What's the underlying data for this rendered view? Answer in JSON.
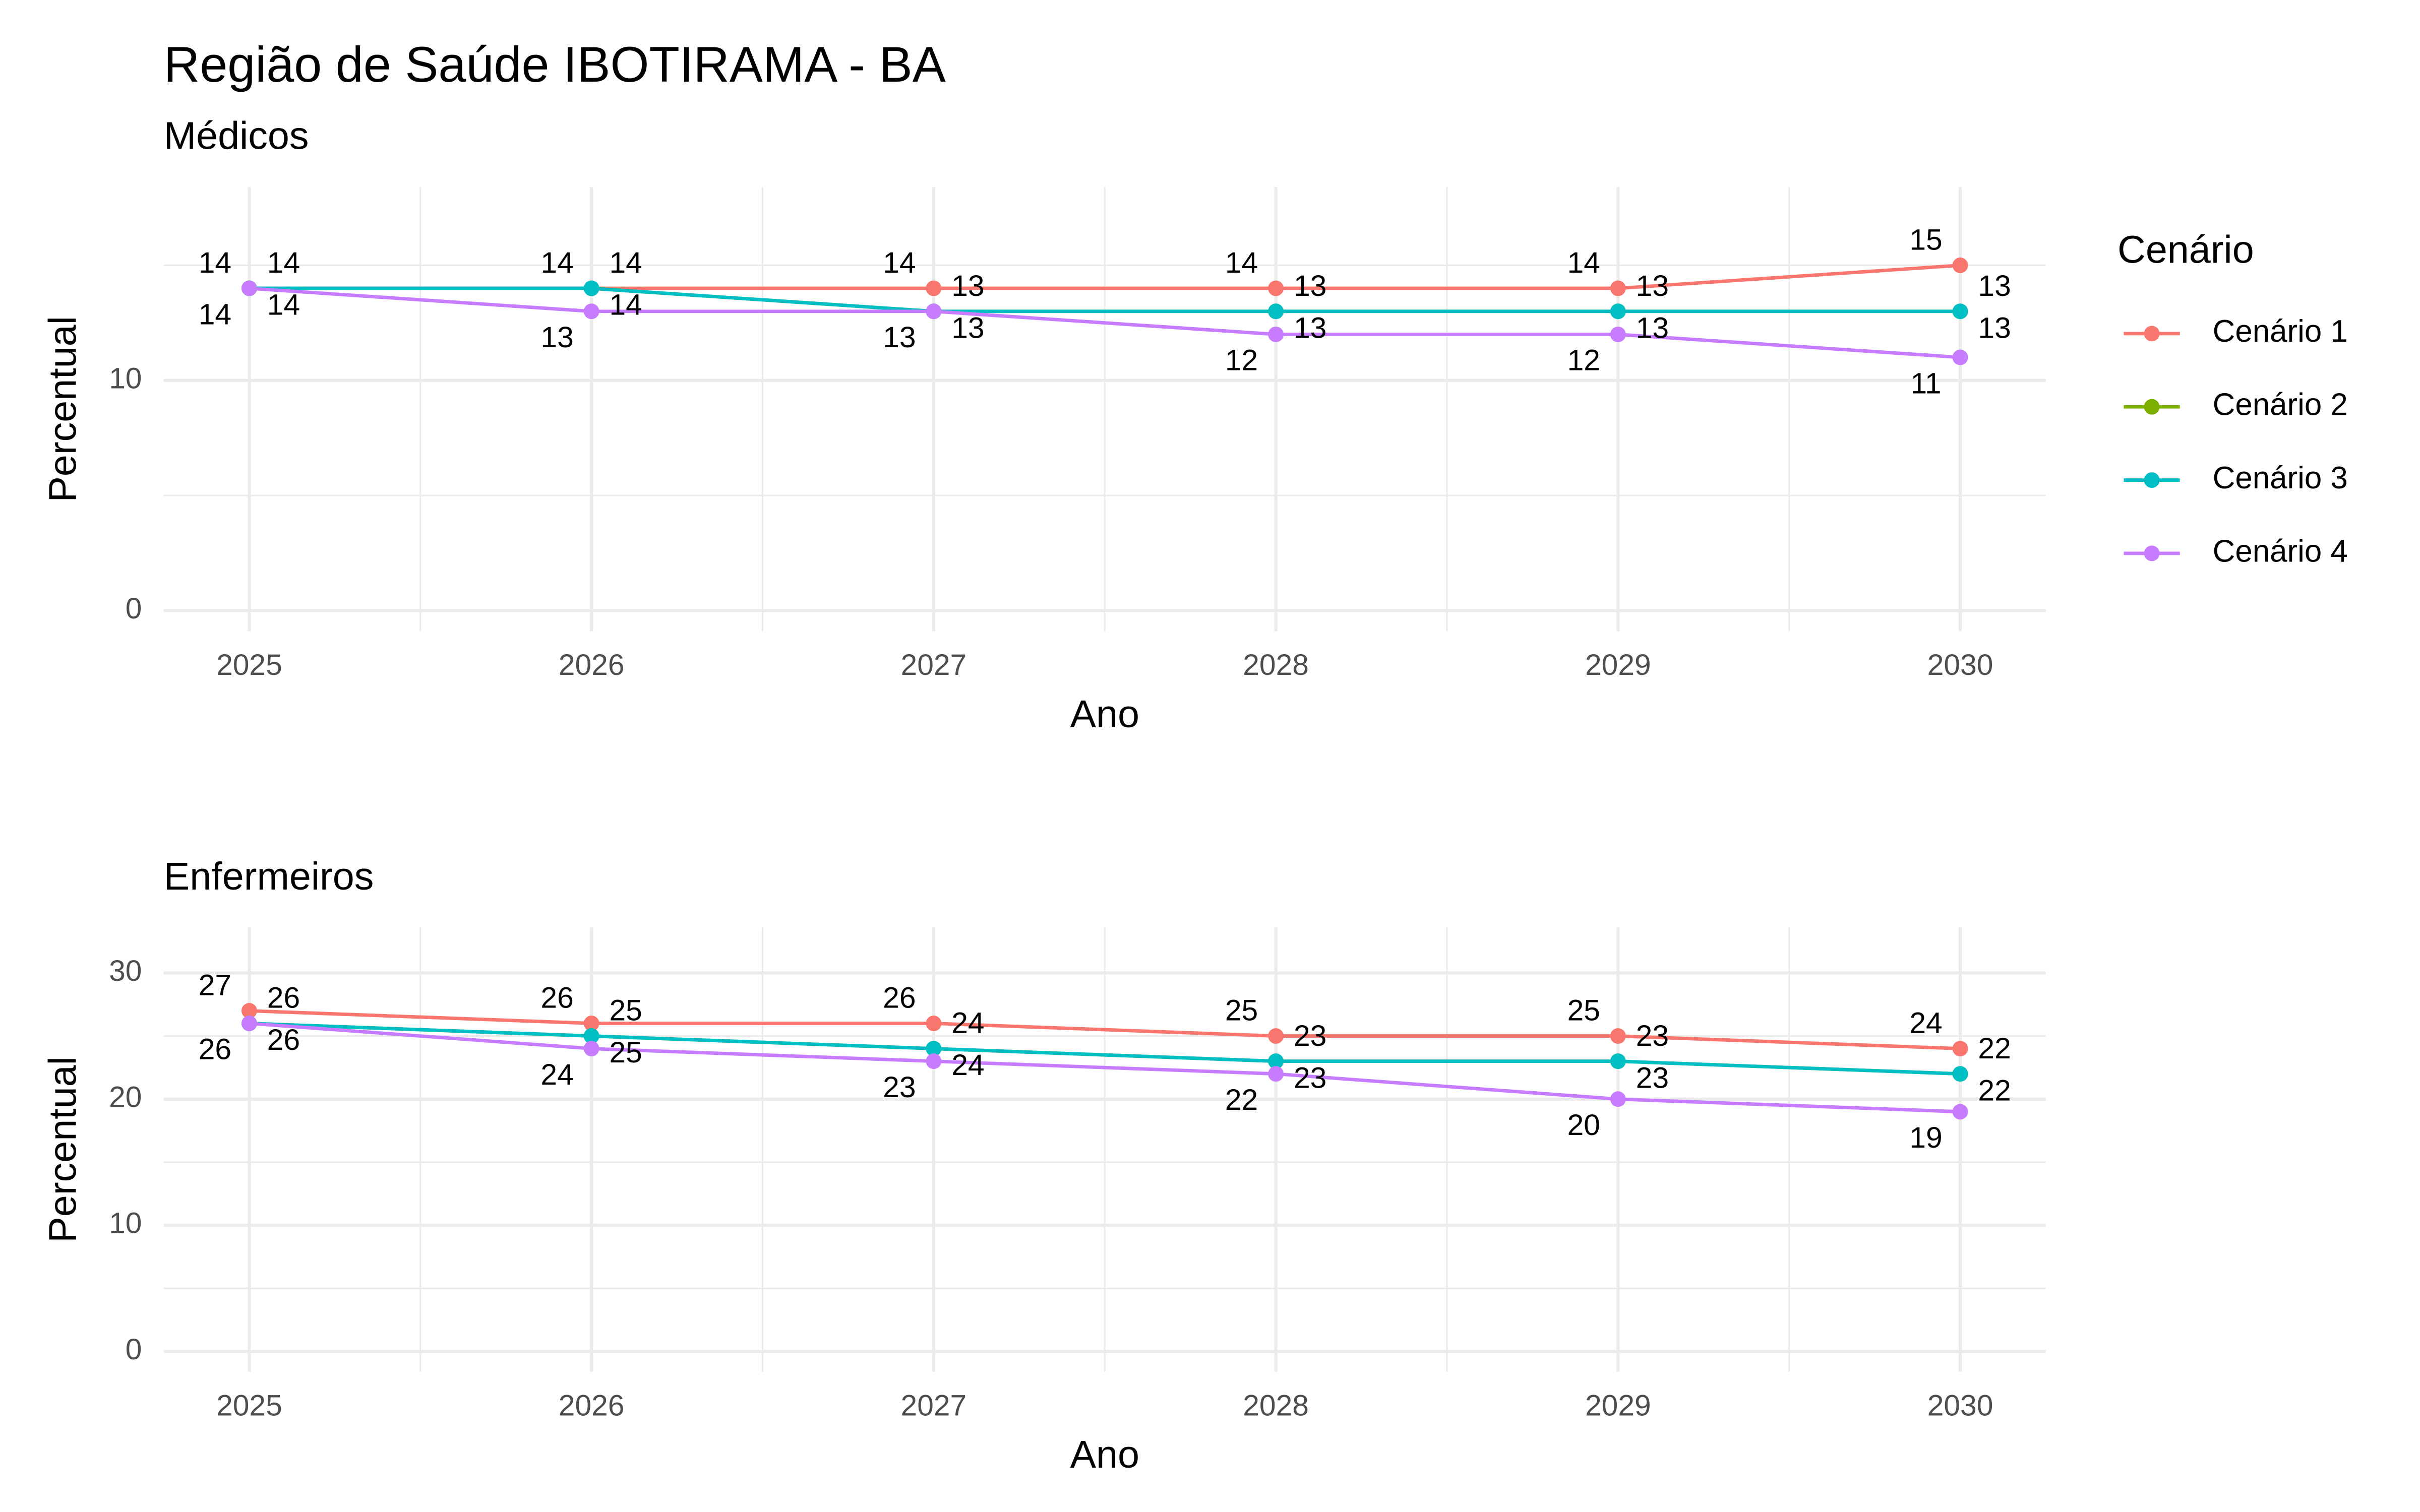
{
  "title": "Região de Saúde IBOTIRAMA - BA",
  "legend_title": "Cenário",
  "chart_data": [
    {
      "type": "line",
      "subtitle": "Médicos",
      "xlabel": "Ano",
      "ylabel": "Percentual",
      "x": [
        2025,
        2026,
        2027,
        2028,
        2029,
        2030
      ],
      "series": [
        {
          "name": "Cenário 1",
          "color": "#F8766D",
          "values": [
            14,
            14,
            14,
            14,
            14,
            15
          ]
        },
        {
          "name": "Cenário 2",
          "color": "#7CAE00",
          "values": [
            14,
            14,
            13,
            13,
            13,
            13
          ]
        },
        {
          "name": "Cenário 3",
          "color": "#00BFC4",
          "values": [
            14,
            14,
            13,
            13,
            13,
            13
          ]
        },
        {
          "name": "Cenário 4",
          "color": "#C77CFF",
          "values": [
            14,
            13,
            13,
            12,
            12,
            11
          ]
        }
      ],
      "xlim": [
        2024.75,
        2030.25
      ],
      "xticks": [
        2025,
        2026,
        2027,
        2028,
        2029,
        2030
      ],
      "ylim": [
        -0.9,
        18.4
      ],
      "yticks": [
        0,
        10
      ],
      "grid": true
    },
    {
      "type": "line",
      "subtitle": "Enfermeiros",
      "xlabel": "Ano",
      "ylabel": "Percentual",
      "x": [
        2025,
        2026,
        2027,
        2028,
        2029,
        2030
      ],
      "series": [
        {
          "name": "Cenário 1",
          "color": "#F8766D",
          "values": [
            27,
            26,
            26,
            25,
            25,
            24
          ]
        },
        {
          "name": "Cenário 2",
          "color": "#7CAE00",
          "values": [
            26,
            25,
            24,
            23,
            23,
            22
          ]
        },
        {
          "name": "Cenário 3",
          "color": "#00BFC4",
          "values": [
            26,
            25,
            24,
            23,
            23,
            22
          ]
        },
        {
          "name": "Cenário 4",
          "color": "#C77CFF",
          "values": [
            26,
            24,
            23,
            22,
            20,
            19
          ]
        }
      ],
      "xlim": [
        2024.75,
        2030.25
      ],
      "xticks": [
        2025,
        2026,
        2027,
        2028,
        2029,
        2030
      ],
      "ylim": [
        -1.6,
        33.6
      ],
      "yticks": [
        0,
        10,
        20,
        30
      ],
      "grid": true
    }
  ]
}
